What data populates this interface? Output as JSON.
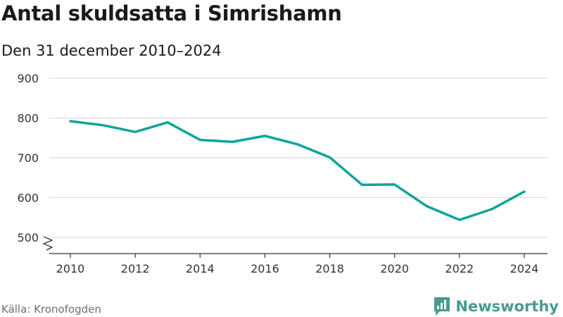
{
  "title": "Antal skuldsatta i Simrishamn",
  "subtitle": "Den 31 december 2010–2024",
  "source": "Källa: Kronofogden",
  "brand": {
    "name": "Newsworthy",
    "icon": "newsworthy-logo-icon",
    "color": "#4a9a93"
  },
  "chart_data": {
    "type": "line",
    "title": "Antal skuldsatta i Simrishamn",
    "subtitle": "Den 31 december 2010–2024",
    "x": [
      2010,
      2011,
      2012,
      2013,
      2014,
      2015,
      2016,
      2017,
      2018,
      2019,
      2020,
      2021,
      2022,
      2023,
      2024
    ],
    "series": [
      {
        "values": [
          792,
          782,
          765,
          789,
          745,
          740,
          755,
          734,
          701,
          632,
          633,
          578,
          544,
          571,
          615
        ],
        "color": "#0ea49a"
      }
    ],
    "x_ticks": [
      "2010",
      "2012",
      "2014",
      "2016",
      "2018",
      "2020",
      "2022",
      "2024"
    ],
    "y_ticks": [
      "500",
      "600",
      "700",
      "800",
      "900"
    ],
    "xlim": [
      2010,
      2024
    ],
    "ylim": [
      500,
      900
    ],
    "y_axis_break": true,
    "grid": "horizontal",
    "legend": "none"
  }
}
